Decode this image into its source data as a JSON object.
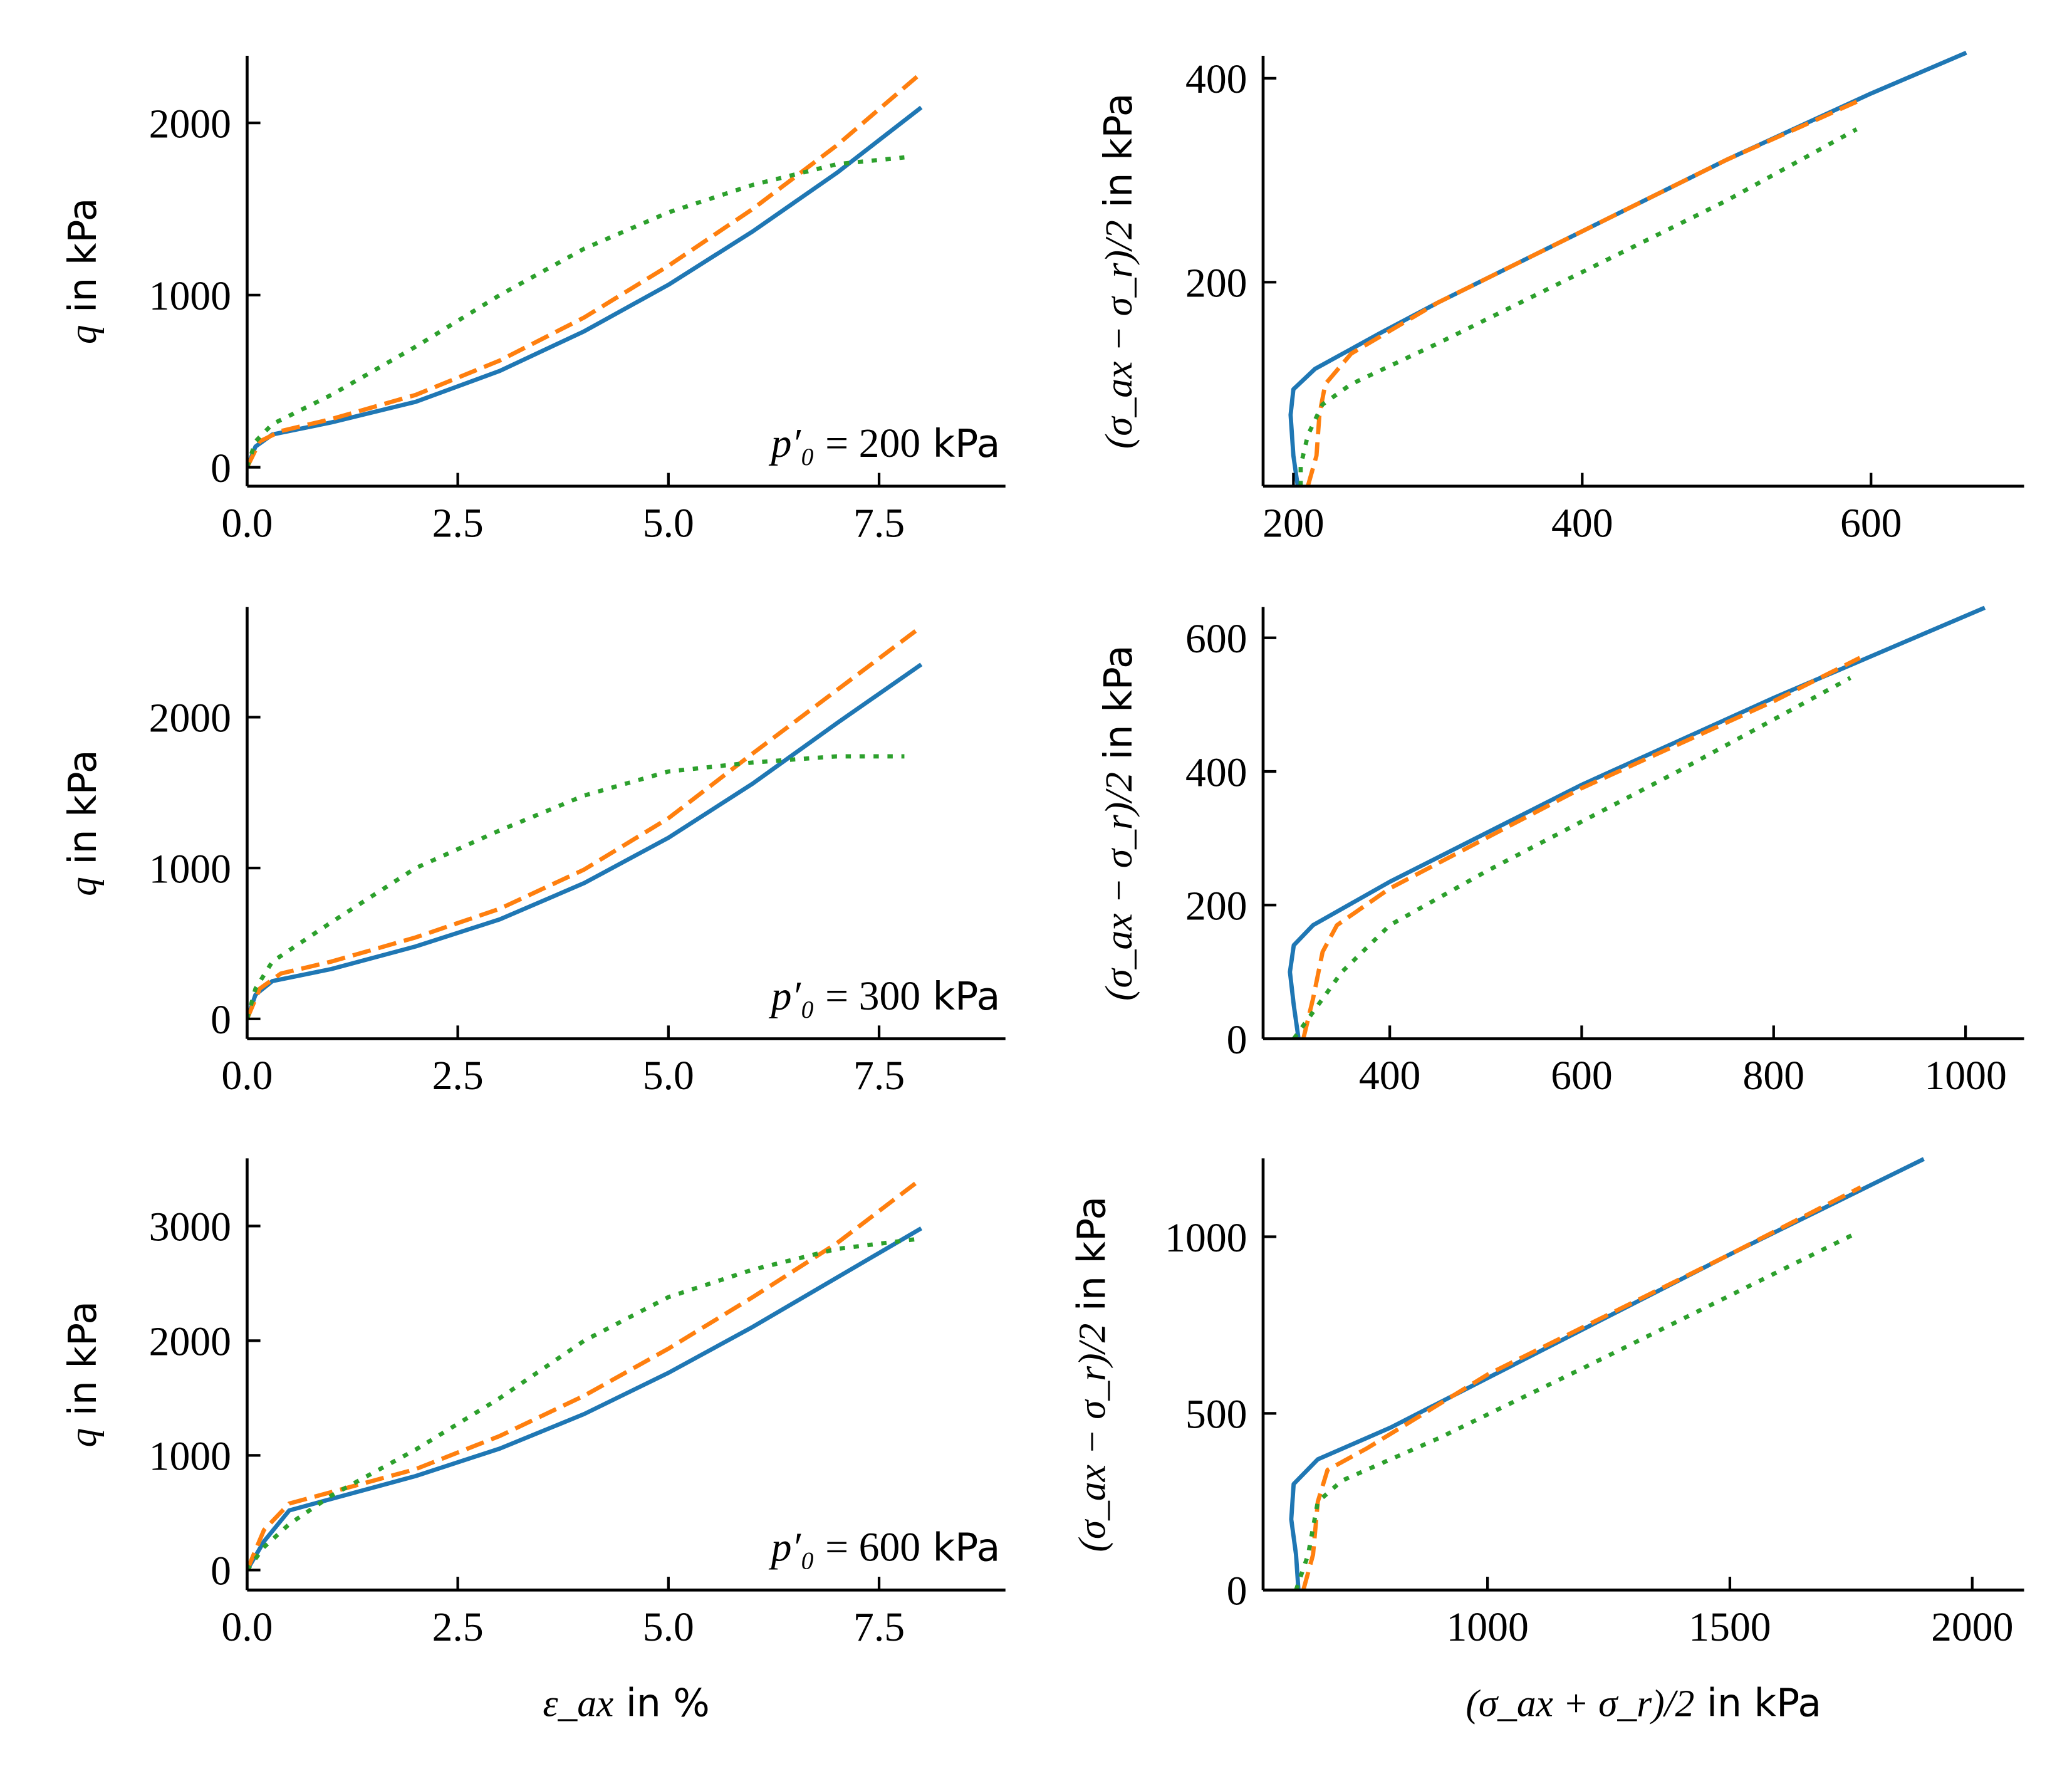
{
  "colors": {
    "model_a": "#1f77b4",
    "model_b": "#ff7f0e",
    "model_c": "#2ca02c"
  },
  "line_styles": {
    "model_a": "solid",
    "model_b": "dashed",
    "model_c": "dotted"
  },
  "chart_data": [
    {
      "type": "line",
      "panel": "row1-left",
      "ylabel": {
        "math": "q",
        "text": " in kPa"
      },
      "xlabel": null,
      "annotation": {
        "math": "p′₀",
        "rest": " = 200",
        "unit": " kPa"
      },
      "xlim": [
        0,
        9
      ],
      "ylim": [
        -110,
        2390
      ],
      "xticks": [
        "0.0",
        "2.5",
        "5.0",
        "7.5"
      ],
      "xtick_values": [
        0,
        2.5,
        5,
        7.5
      ],
      "yticks": [
        "0",
        "1000",
        "2000"
      ],
      "ytick_values": [
        0,
        1000,
        2000
      ],
      "series": [
        {
          "style": "model_a",
          "x": [
            0,
            0.1,
            0.3,
            1,
            2,
            3,
            4,
            5,
            6,
            7,
            8
          ],
          "y": [
            0,
            120,
            190,
            260,
            380,
            560,
            790,
            1060,
            1370,
            1710,
            2090
          ]
        },
        {
          "style": "model_b",
          "x": [
            0,
            0.15,
            0.4,
            1,
            2,
            3,
            4,
            5,
            6,
            7,
            8
          ],
          "y": [
            0,
            150,
            210,
            280,
            420,
            620,
            870,
            1170,
            1500,
            1870,
            2290
          ]
        },
        {
          "style": "model_c",
          "x": [
            0,
            0.1,
            0.3,
            1,
            2,
            3,
            4,
            5,
            6,
            7,
            7.8
          ],
          "y": [
            0,
            150,
            250,
            420,
            700,
            1000,
            1270,
            1480,
            1640,
            1760,
            1800
          ]
        }
      ]
    },
    {
      "type": "line",
      "panel": "row1-right",
      "ylabel": {
        "math": "(σ_ax − σ_r)/2",
        "text": " in kPa"
      },
      "xlabel": null,
      "xlim": [
        179,
        706
      ],
      "ylim": [
        0,
        422
      ],
      "xticks": [
        "200",
        "400",
        "600"
      ],
      "xtick_values": [
        200,
        400,
        600
      ],
      "yticks": [
        "200",
        "400"
      ],
      "ytick_values": [
        200,
        400
      ],
      "series": [
        {
          "style": "model_a",
          "x": [
            203,
            200,
            198,
            200,
            215,
            260,
            300,
            400,
            500,
            600,
            666
          ],
          "y": [
            0,
            30,
            70,
            95,
            115,
            150,
            180,
            250,
            320,
            385,
            425
          ]
        },
        {
          "style": "model_b",
          "x": [
            210,
            216,
            218,
            222,
            240,
            300,
            400,
            500,
            595
          ],
          "y": [
            0,
            30,
            70,
            100,
            130,
            180,
            250,
            320,
            380
          ]
        },
        {
          "style": "model_c",
          "x": [
            205,
            205,
            210,
            220,
            240,
            300,
            400,
            500,
            590
          ],
          "y": [
            0,
            20,
            50,
            80,
            100,
            140,
            210,
            280,
            350
          ]
        }
      ]
    },
    {
      "type": "line",
      "panel": "row2-left",
      "ylabel": {
        "math": "q",
        "text": " in kPa"
      },
      "xlabel": null,
      "annotation": {
        "math": "p′₀",
        "rest": " = 300",
        "unit": " kPa"
      },
      "xlim": [
        0,
        9
      ],
      "ylim": [
        -132,
        2730
      ],
      "xticks": [
        "0.0",
        "2.5",
        "5.0",
        "7.5"
      ],
      "xtick_values": [
        0,
        2.5,
        5,
        7.5
      ],
      "yticks": [
        "0",
        "1000",
        "2000"
      ],
      "ytick_values": [
        0,
        1000,
        2000
      ],
      "series": [
        {
          "style": "model_a",
          "x": [
            0,
            0.1,
            0.3,
            1,
            2,
            3,
            4,
            5,
            6,
            7,
            8
          ],
          "y": [
            0,
            160,
            250,
            330,
            480,
            660,
            900,
            1200,
            1560,
            1960,
            2350
          ]
        },
        {
          "style": "model_b",
          "x": [
            0,
            0.15,
            0.4,
            1,
            2,
            3,
            4,
            5,
            6,
            7,
            8
          ],
          "y": [
            0,
            200,
            300,
            380,
            540,
            730,
            990,
            1330,
            1760,
            2180,
            2600
          ]
        },
        {
          "style": "model_c",
          "x": [
            0,
            0.1,
            0.3,
            1,
            2,
            3,
            4,
            5,
            6,
            7,
            7.8
          ],
          "y": [
            0,
            200,
            380,
            640,
            1000,
            1250,
            1480,
            1640,
            1700,
            1740,
            1740
          ]
        }
      ]
    },
    {
      "type": "line",
      "panel": "row2-right",
      "ylabel": {
        "math": "(σ_ax − σ_r)/2",
        "text": " in kPa"
      },
      "xlabel": null,
      "xlim": [
        268,
        1061
      ],
      "ylim": [
        0,
        646
      ],
      "xticks": [
        "400",
        "600",
        "800",
        "1000"
      ],
      "xtick_values": [
        400,
        600,
        800,
        1000
      ],
      "yticks": [
        "0",
        "200",
        "400",
        "600"
      ],
      "ytick_values": [
        0,
        200,
        400,
        600
      ],
      "series": [
        {
          "style": "model_a",
          "x": [
            305,
            300,
            296,
            300,
            320,
            400,
            600,
            800,
            1020
          ],
          "y": [
            0,
            50,
            100,
            140,
            170,
            235,
            380,
            510,
            645
          ]
        },
        {
          "style": "model_b",
          "x": [
            310,
            320,
            330,
            345,
            400,
            600,
            800,
            890
          ],
          "y": [
            0,
            60,
            130,
            170,
            225,
            375,
            505,
            570
          ]
        },
        {
          "style": "model_c",
          "x": [
            300,
            320,
            350,
            400,
            500,
            700,
            880
          ],
          "y": [
            0,
            40,
            100,
            170,
            250,
            400,
            540
          ]
        }
      ]
    },
    {
      "type": "line",
      "panel": "row3-left",
      "ylabel": {
        "math": "q",
        "text": " in kPa"
      },
      "xlabel": {
        "math": "ε_ax",
        "text": " in %"
      },
      "annotation": {
        "math": "p′₀",
        "rest": " = 600",
        "unit": " kPa"
      },
      "xlim": [
        0,
        9
      ],
      "ylim": [
        -174,
        3590
      ],
      "xticks": [
        "0.0",
        "2.5",
        "5.0",
        "7.5"
      ],
      "xtick_values": [
        0,
        2.5,
        5,
        7.5
      ],
      "yticks": [
        "0",
        "1000",
        "2000",
        "3000"
      ],
      "ytick_values": [
        0,
        1000,
        2000,
        3000
      ],
      "series": [
        {
          "style": "model_a",
          "x": [
            0,
            0.2,
            0.5,
            1,
            2,
            3,
            4,
            5,
            6,
            7,
            8
          ],
          "y": [
            0,
            250,
            520,
            620,
            820,
            1060,
            1360,
            1720,
            2120,
            2550,
            2980
          ]
        },
        {
          "style": "model_b",
          "x": [
            0,
            0.2,
            0.5,
            1,
            2,
            3,
            4,
            5,
            6,
            7,
            8
          ],
          "y": [
            0,
            350,
            580,
            680,
            880,
            1170,
            1520,
            1930,
            2380,
            2850,
            3410
          ]
        },
        {
          "style": "model_c",
          "x": [
            0,
            0.2,
            0.5,
            1,
            2,
            3,
            4,
            5,
            6,
            7,
            8
          ],
          "y": [
            0,
            200,
            400,
            650,
            1050,
            1500,
            2000,
            2380,
            2620,
            2800,
            2890
          ]
        }
      ]
    },
    {
      "type": "line",
      "panel": "row3-right",
      "ylabel": {
        "math": "(σ_ax − σ_r)/2",
        "text": " in kPa"
      },
      "xlabel": {
        "math": "(σ_ax + σ_r)/2",
        "text": " in kPa"
      },
      "xlim": [
        537,
        2107
      ],
      "ylim": [
        0,
        1222
      ],
      "xticks": [
        "1000",
        "1500",
        "2000"
      ],
      "xtick_values": [
        1000,
        1500,
        2000
      ],
      "yticks": [
        "0",
        "500",
        "1000"
      ],
      "ytick_values": [
        0,
        500,
        1000
      ],
      "series": [
        {
          "style": "model_a",
          "x": [
            610,
            605,
            595,
            600,
            650,
            800,
            1000,
            1500,
            1900
          ],
          "y": [
            0,
            100,
            200,
            300,
            370,
            460,
            600,
            950,
            1220
          ]
        },
        {
          "style": "model_b",
          "x": [
            620,
            640,
            650,
            670,
            750,
            1000,
            1500,
            1770
          ],
          "y": [
            0,
            100,
            250,
            340,
            400,
            610,
            950,
            1140
          ]
        },
        {
          "style": "model_c",
          "x": [
            605,
            630,
            650,
            700,
            900,
            1200,
            1760
          ],
          "y": [
            0,
            100,
            250,
            310,
            430,
            630,
            1010
          ]
        }
      ]
    }
  ]
}
